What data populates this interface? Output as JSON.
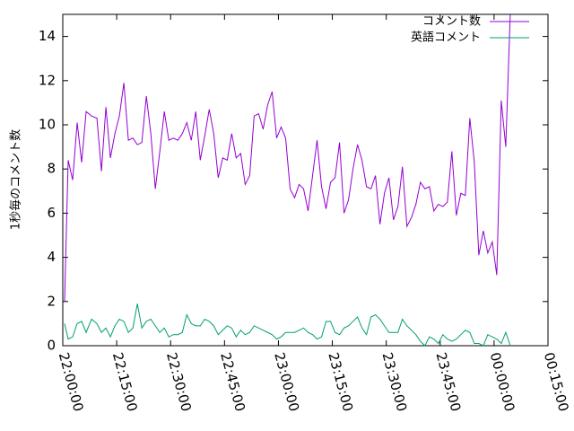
{
  "chart_data": {
    "type": "line",
    "title": "",
    "xlabel": "",
    "ylabel": "1秒毎のコメント数",
    "xlim": [
      "22:00:00",
      "00:15:00"
    ],
    "ylim": [
      0,
      15
    ],
    "y_ticks": [
      0,
      2,
      4,
      6,
      8,
      10,
      12,
      14
    ],
    "x_ticks": [
      "22:00:00",
      "22:15:00",
      "22:30:00",
      "22:45:00",
      "23:00:00",
      "23:15:00",
      "23:30:00",
      "23:45:00",
      "00:00:00",
      "00:15:00"
    ],
    "grid": false,
    "legend_position": "top-right",
    "series": [
      {
        "name": "コメント数",
        "color": "#9400d3",
        "points": [
          [
            "22:00:30",
            2.0
          ],
          [
            "22:01:30",
            8.4
          ],
          [
            "22:02:45",
            7.5
          ],
          [
            "22:04:00",
            10.1
          ],
          [
            "22:05:15",
            8.3
          ],
          [
            "22:06:30",
            10.6
          ],
          [
            "22:08:00",
            10.4
          ],
          [
            "22:09:30",
            10.3
          ],
          [
            "22:10:45",
            7.9
          ],
          [
            "22:12:00",
            10.8
          ],
          [
            "22:13:15",
            8.5
          ],
          [
            "22:14:30",
            9.6
          ],
          [
            "22:15:45",
            10.4
          ],
          [
            "22:17:00",
            11.9
          ],
          [
            "22:18:15",
            9.3
          ],
          [
            "22:19:30",
            9.4
          ],
          [
            "22:20:45",
            9.1
          ],
          [
            "22:22:00",
            9.2
          ],
          [
            "22:23:15",
            11.3
          ],
          [
            "22:24:30",
            9.6
          ],
          [
            "22:25:45",
            7.1
          ],
          [
            "22:27:00",
            8.8
          ],
          [
            "22:28:15",
            10.6
          ],
          [
            "22:29:30",
            9.3
          ],
          [
            "22:30:45",
            9.4
          ],
          [
            "22:32:00",
            9.3
          ],
          [
            "22:33:15",
            9.6
          ],
          [
            "22:34:30",
            10.1
          ],
          [
            "22:35:45",
            9.3
          ],
          [
            "22:37:00",
            10.6
          ],
          [
            "22:38:15",
            8.4
          ],
          [
            "22:39:30",
            9.5
          ],
          [
            "22:40:45",
            10.7
          ],
          [
            "22:42:00",
            9.6
          ],
          [
            "22:43:15",
            7.6
          ],
          [
            "22:44:30",
            8.5
          ],
          [
            "22:45:45",
            8.4
          ],
          [
            "22:47:00",
            9.6
          ],
          [
            "22:48:15",
            8.5
          ],
          [
            "22:49:30",
            8.7
          ],
          [
            "22:50:45",
            7.3
          ],
          [
            "22:52:00",
            7.7
          ],
          [
            "22:53:15",
            10.4
          ],
          [
            "22:54:30",
            10.5
          ],
          [
            "22:55:45",
            9.8
          ],
          [
            "22:57:00",
            10.9
          ],
          [
            "22:58:15",
            11.5
          ],
          [
            "22:59:30",
            9.4
          ],
          [
            "23:00:45",
            9.9
          ],
          [
            "23:02:00",
            9.4
          ],
          [
            "23:03:15",
            7.1
          ],
          [
            "23:04:30",
            6.7
          ],
          [
            "23:05:45",
            7.3
          ],
          [
            "23:07:00",
            7.1
          ],
          [
            "23:08:15",
            6.1
          ],
          [
            "23:09:30",
            7.7
          ],
          [
            "23:10:45",
            9.3
          ],
          [
            "23:12:00",
            7.2
          ],
          [
            "23:13:15",
            6.2
          ],
          [
            "23:14:30",
            7.4
          ],
          [
            "23:15:45",
            7.6
          ],
          [
            "23:17:00",
            9.2
          ],
          [
            "23:18:15",
            6.0
          ],
          [
            "23:19:30",
            6.6
          ],
          [
            "23:20:45",
            8.0
          ],
          [
            "23:22:00",
            9.1
          ],
          [
            "23:23:15",
            8.4
          ],
          [
            "23:24:30",
            7.2
          ],
          [
            "23:25:45",
            7.1
          ],
          [
            "23:27:00",
            7.7
          ],
          [
            "23:28:15",
            5.5
          ],
          [
            "23:29:30",
            6.9
          ],
          [
            "23:30:45",
            7.6
          ],
          [
            "23:32:00",
            5.7
          ],
          [
            "23:33:15",
            6.3
          ],
          [
            "23:34:30",
            8.1
          ],
          [
            "23:35:45",
            5.4
          ],
          [
            "23:37:00",
            5.8
          ],
          [
            "23:38:15",
            6.4
          ],
          [
            "23:39:30",
            7.4
          ],
          [
            "23:40:45",
            7.1
          ],
          [
            "23:42:00",
            7.2
          ],
          [
            "23:43:15",
            6.1
          ],
          [
            "23:44:30",
            6.4
          ],
          [
            "23:45:45",
            6.3
          ],
          [
            "23:47:00",
            6.5
          ],
          [
            "23:48:15",
            8.8
          ],
          [
            "23:49:30",
            5.9
          ],
          [
            "23:50:45",
            6.9
          ],
          [
            "23:52:00",
            6.8
          ],
          [
            "23:53:15",
            10.3
          ],
          [
            "23:54:30",
            8.3
          ],
          [
            "23:55:45",
            4.1
          ],
          [
            "23:57:00",
            5.2
          ],
          [
            "23:58:15",
            4.2
          ],
          [
            "23:59:30",
            4.7
          ],
          [
            "00:00:45",
            3.2
          ],
          [
            "00:02:00",
            11.1
          ],
          [
            "00:03:15",
            9.0
          ],
          [
            "00:04:30",
            15.0
          ]
        ]
      },
      {
        "name": "英語コメント",
        "color": "#009e73",
        "points": [
          [
            "22:00:30",
            1.0
          ],
          [
            "22:01:30",
            0.3
          ],
          [
            "22:02:45",
            0.4
          ],
          [
            "22:04:00",
            1.0
          ],
          [
            "22:05:15",
            1.1
          ],
          [
            "22:06:30",
            0.6
          ],
          [
            "22:08:00",
            1.2
          ],
          [
            "22:09:30",
            1.0
          ],
          [
            "22:10:45",
            0.6
          ],
          [
            "22:12:00",
            0.8
          ],
          [
            "22:13:15",
            0.4
          ],
          [
            "22:14:30",
            0.9
          ],
          [
            "22:15:45",
            1.2
          ],
          [
            "22:17:00",
            1.1
          ],
          [
            "22:18:15",
            0.6
          ],
          [
            "22:19:30",
            0.8
          ],
          [
            "22:20:45",
            1.9
          ],
          [
            "22:22:00",
            0.8
          ],
          [
            "22:23:15",
            1.1
          ],
          [
            "22:24:30",
            1.2
          ],
          [
            "22:25:45",
            0.9
          ],
          [
            "22:27:00",
            0.6
          ],
          [
            "22:28:15",
            0.8
          ],
          [
            "22:29:30",
            0.4
          ],
          [
            "22:30:45",
            0.5
          ],
          [
            "22:32:00",
            0.5
          ],
          [
            "22:33:15",
            0.6
          ],
          [
            "22:34:30",
            1.4
          ],
          [
            "22:35:45",
            1.0
          ],
          [
            "22:37:00",
            0.9
          ],
          [
            "22:38:15",
            0.9
          ],
          [
            "22:39:30",
            1.2
          ],
          [
            "22:40:45",
            1.1
          ],
          [
            "22:42:00",
            0.9
          ],
          [
            "22:43:15",
            0.5
          ],
          [
            "22:44:30",
            0.7
          ],
          [
            "22:45:45",
            0.9
          ],
          [
            "22:47:00",
            0.8
          ],
          [
            "22:48:15",
            0.4
          ],
          [
            "22:49:30",
            0.7
          ],
          [
            "22:50:45",
            0.5
          ],
          [
            "22:52:00",
            0.6
          ],
          [
            "22:53:15",
            0.9
          ],
          [
            "22:54:30",
            0.8
          ],
          [
            "22:55:45",
            0.7
          ],
          [
            "22:57:00",
            0.6
          ],
          [
            "22:58:15",
            0.5
          ],
          [
            "22:59:30",
            0.3
          ],
          [
            "23:00:45",
            0.4
          ],
          [
            "23:02:00",
            0.6
          ],
          [
            "23:03:15",
            0.6
          ],
          [
            "23:04:30",
            0.6
          ],
          [
            "23:05:45",
            0.7
          ],
          [
            "23:07:00",
            0.8
          ],
          [
            "23:08:15",
            0.6
          ],
          [
            "23:09:30",
            0.5
          ],
          [
            "23:10:45",
            0.3
          ],
          [
            "23:12:00",
            0.4
          ],
          [
            "23:13:15",
            1.1
          ],
          [
            "23:14:30",
            1.1
          ],
          [
            "23:15:45",
            0.6
          ],
          [
            "23:17:00",
            0.5
          ],
          [
            "23:18:15",
            0.8
          ],
          [
            "23:19:30",
            0.9
          ],
          [
            "23:20:45",
            1.1
          ],
          [
            "23:22:00",
            1.3
          ],
          [
            "23:23:15",
            0.8
          ],
          [
            "23:24:30",
            0.5
          ],
          [
            "23:25:45",
            1.3
          ],
          [
            "23:27:00",
            1.4
          ],
          [
            "23:28:15",
            1.2
          ],
          [
            "23:29:30",
            0.9
          ],
          [
            "23:30:45",
            0.6
          ],
          [
            "23:32:00",
            0.6
          ],
          [
            "23:33:15",
            0.6
          ],
          [
            "23:34:30",
            1.2
          ],
          [
            "23:35:45",
            0.9
          ],
          [
            "23:37:00",
            0.7
          ],
          [
            "23:38:15",
            0.5
          ],
          [
            "23:39:30",
            0.2
          ],
          [
            "23:40:45",
            0.0
          ],
          [
            "23:42:00",
            0.4
          ],
          [
            "23:43:15",
            0.3
          ],
          [
            "23:44:30",
            0.1
          ],
          [
            "23:45:45",
            0.5
          ],
          [
            "23:47:00",
            0.3
          ],
          [
            "23:48:15",
            0.2
          ],
          [
            "23:49:30",
            0.3
          ],
          [
            "23:50:45",
            0.5
          ],
          [
            "23:52:00",
            0.7
          ],
          [
            "23:53:15",
            0.6
          ],
          [
            "23:54:30",
            0.1
          ],
          [
            "23:55:45",
            0.1
          ],
          [
            "23:57:00",
            0.0
          ],
          [
            "23:58:15",
            0.5
          ],
          [
            "23:59:30",
            0.4
          ],
          [
            "00:00:45",
            0.3
          ],
          [
            "00:02:00",
            0.1
          ],
          [
            "00:03:15",
            0.6
          ],
          [
            "00:04:30",
            0.0
          ]
        ]
      }
    ]
  }
}
